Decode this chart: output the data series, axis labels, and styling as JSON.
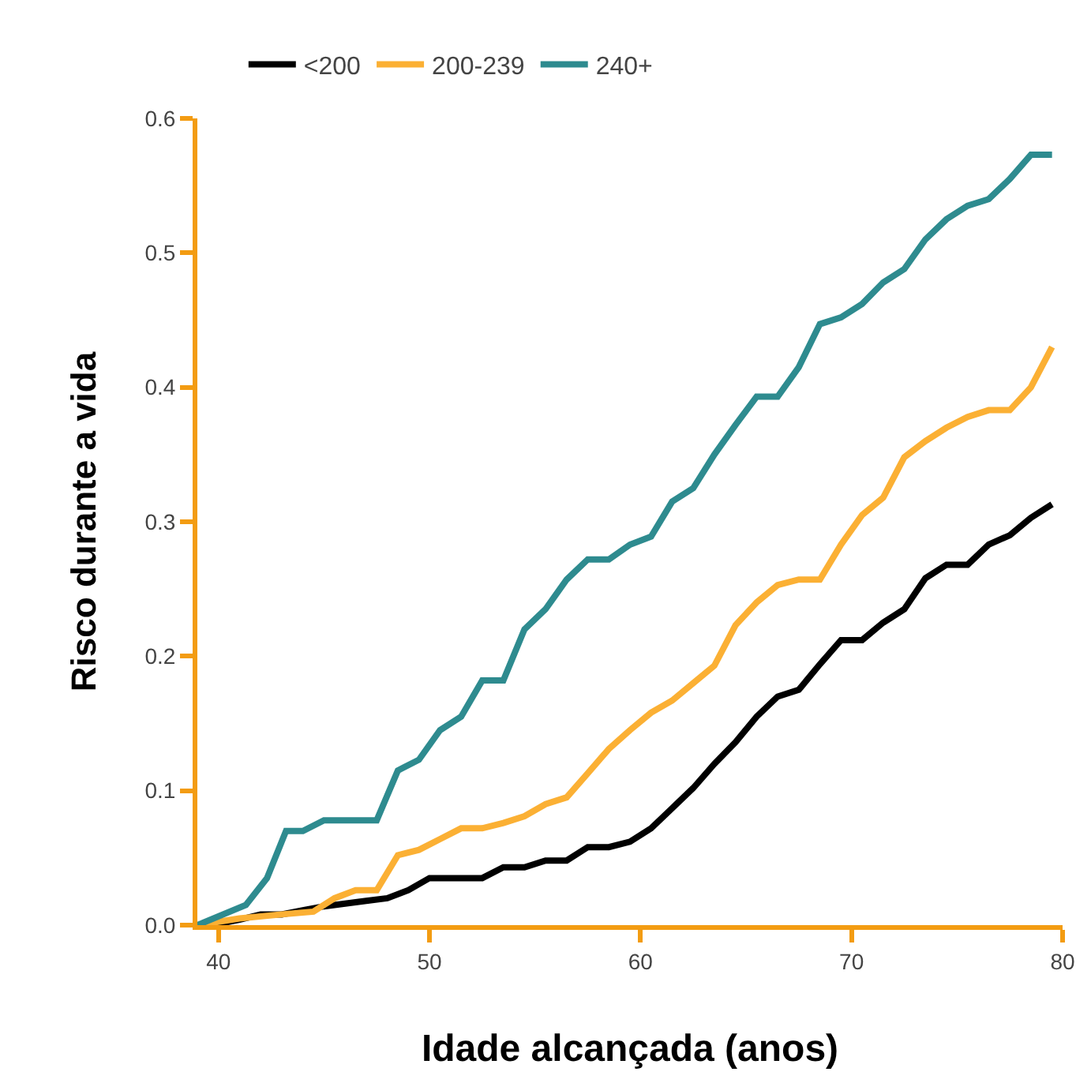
{
  "chart_data": {
    "type": "line",
    "xlabel": "Idade alcançada (anos)",
    "ylabel": "Risco durante a vida",
    "xlim": [
      39,
      80
    ],
    "ylim": [
      0,
      0.6
    ],
    "xticks": [
      40,
      50,
      60,
      70,
      80
    ],
    "yticks": [
      {
        "value": 0,
        "label": "0.0"
      },
      0.1,
      0.2,
      0.3,
      0.4,
      0.5,
      0.6
    ],
    "legend": "top left",
    "marker": "none",
    "line_style": "solid",
    "series": [
      {
        "name": "<200",
        "color": "#000000",
        "x": [
          39,
          40,
          41,
          42,
          43,
          44,
          45,
          46,
          47,
          48,
          49,
          50,
          51,
          52.5,
          53.5,
          54.5,
          55.5,
          56.5,
          57.5,
          58.5,
          59.5,
          60.5,
          61.5,
          62.5,
          63.5,
          64.5,
          65.5,
          66.5,
          67.5,
          68.5,
          69.5,
          70.5,
          71.5,
          72.5,
          73.5,
          74.5,
          75.5,
          76.5,
          77.5,
          78.5,
          79.5
        ],
        "values": [
          0,
          0.001,
          0.004,
          0.008,
          0.008,
          0.011,
          0.014,
          0.016,
          0.018,
          0.02,
          0.026,
          0.035,
          0.035,
          0.035,
          0.043,
          0.043,
          0.048,
          0.048,
          0.058,
          0.058,
          0.062,
          0.072,
          0.087,
          0.102,
          0.12,
          0.136,
          0.155,
          0.17,
          0.175,
          0.194,
          0.212,
          0.212,
          0.225,
          0.235,
          0.258,
          0.268,
          0.268,
          0.283,
          0.29,
          0.303,
          0.313
        ]
      },
      {
        "name": "200-239",
        "color": "#fbb034",
        "x": [
          39,
          41,
          43,
          44.5,
          45.5,
          46.5,
          47.5,
          48.5,
          49.5,
          50.5,
          51.5,
          52.5,
          53.5,
          54.5,
          55.5,
          56.5,
          57.5,
          58.5,
          59.5,
          60.5,
          61.5,
          62.5,
          63.5,
          64.5,
          65.5,
          66.5,
          67.5,
          68.5,
          69.5,
          70.5,
          71.5,
          72.5,
          73.5,
          74.5,
          75.5,
          76.5,
          77.5,
          78.5,
          79.5
        ],
        "values": [
          0,
          0.005,
          0.008,
          0.01,
          0.02,
          0.026,
          0.026,
          0.052,
          0.056,
          0.064,
          0.072,
          0.072,
          0.076,
          0.081,
          0.09,
          0.095,
          0.113,
          0.131,
          0.145,
          0.158,
          0.167,
          0.18,
          0.193,
          0.223,
          0.24,
          0.253,
          0.257,
          0.257,
          0.283,
          0.305,
          0.318,
          0.348,
          0.36,
          0.37,
          0.378,
          0.383,
          0.383,
          0.4,
          0.43
        ]
      },
      {
        "name": "240+",
        "color": "#2e8b8f",
        "x": [
          39,
          41.3,
          42.3,
          43.2,
          44,
          45,
          46,
          47.5,
          48.5,
          49.5,
          50.5,
          51.5,
          52.5,
          53.5,
          54.5,
          55.5,
          56.5,
          57.5,
          58.5,
          59.5,
          60.5,
          61.5,
          62.5,
          63.5,
          64.5,
          65.5,
          66.5,
          67.5,
          68.5,
          69.5,
          70.5,
          71.5,
          72.5,
          73.5,
          74.5,
          75.5,
          76.5,
          77.5,
          78.5,
          79.5
        ],
        "values": [
          0,
          0.015,
          0.035,
          0.07,
          0.07,
          0.078,
          0.078,
          0.078,
          0.115,
          0.123,
          0.145,
          0.155,
          0.182,
          0.182,
          0.22,
          0.235,
          0.257,
          0.272,
          0.272,
          0.283,
          0.289,
          0.315,
          0.325,
          0.35,
          0.372,
          0.393,
          0.393,
          0.415,
          0.447,
          0.452,
          0.462,
          0.478,
          0.488,
          0.51,
          0.525,
          0.535,
          0.54,
          0.555,
          0.573,
          0.573
        ]
      }
    ]
  }
}
